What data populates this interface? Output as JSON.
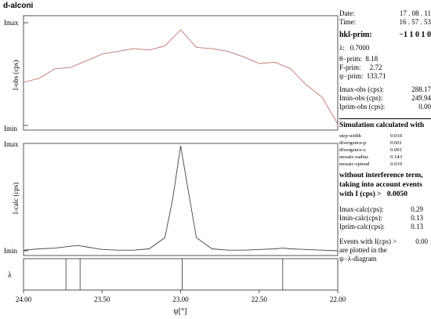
{
  "title": "d-alconi",
  "info": {
    "date_label": "Date:",
    "date_value": "17 . 08 . 11",
    "time_label": "Time:",
    "time_value": "16 . 57 . 53",
    "hkl_label": "hkl-prim:",
    "hkl_value": "−1  1  0  1  0",
    "lambda_label": "λ:",
    "lambda_value": "0.7000",
    "theta_label": "θ−prim:",
    "theta_value": "8.18",
    "f_label": "F-prim:",
    "f_value": "2.72",
    "psi_label": "ψ−prim:",
    "psi_value": "133.71",
    "imax_obs_label": "Imax-obs (cps):",
    "imax_obs_value": "288.17",
    "imin_obs_label": "Imin-obs (cps):",
    "imin_obs_value": "249.94",
    "iprim_obs_label": "Iprim-obs (cps):",
    "iprim_obs_value": "0.00"
  },
  "simulation": {
    "heading": "Simulation calculated with",
    "params": [
      {
        "label": "step-width",
        "value": "0.010"
      },
      {
        "label": "divergence-p",
        "value": "0.001"
      },
      {
        "label": "divergence-s",
        "value": "0.001"
      },
      {
        "label": "mosaic-radius",
        "value": "0.143"
      },
      {
        "label": "mosaic-spread",
        "value": "0.010"
      }
    ],
    "note_line1": "without interference term,",
    "note_line2": "taking into account events",
    "note_line3": "with I (cps) >",
    "threshold": "0.0050",
    "imax_calc_label": "Imax-calc(cps):",
    "imax_calc_value": "0.29",
    "imin_calc_label": "Imin-calc(cps):",
    "imin_calc_value": "0.13",
    "iprim_calc_label": "Iprim-calc(cps):",
    "iprim_calc_value": "0.13",
    "events_line1": "Events with I(cps) >",
    "events_value": "0.00",
    "events_line2": "are plotted in the",
    "events_line3": "ψ−λ-diagram"
  },
  "chart_data": {
    "type": "line",
    "xlabel": "ψ[°]",
    "xlim": [
      24.0,
      22.0
    ],
    "x_ticks": [
      "24.00",
      "23.50",
      "23.00",
      "22.50",
      "22.00"
    ],
    "tick_values": [
      24.0,
      23.5,
      23.0,
      22.5,
      22.0
    ],
    "colors": {
      "observed": "#c0746e",
      "calculated": "#444444"
    },
    "observed": {
      "ylabel": "I-obs (cps)",
      "y_top_label": "Imax",
      "y_bottom_label": "Imin",
      "ylim": [
        249.94,
        288.17
      ],
      "x": [
        24.0,
        23.9,
        23.8,
        23.7,
        23.6,
        23.5,
        23.4,
        23.3,
        23.2,
        23.1,
        23.0,
        22.9,
        22.8,
        22.7,
        22.6,
        22.5,
        22.4,
        22.3,
        22.2,
        22.1,
        22.0
      ],
      "y": [
        266.0,
        267.5,
        271.0,
        271.5,
        274.0,
        276.5,
        277.5,
        278.5,
        278.0,
        279.5,
        285.5,
        279.0,
        278.5,
        277.5,
        275.5,
        273.0,
        273.5,
        271.0,
        265.0,
        260.5,
        250.5
      ]
    },
    "calculated": {
      "ylabel": "I-calc (cps)",
      "y_top_label": "Imax",
      "y_bottom_label": "Imin",
      "ylim": [
        0.13,
        0.29
      ],
      "x": [
        24.0,
        23.9,
        23.8,
        23.7,
        23.65,
        23.6,
        23.5,
        23.4,
        23.3,
        23.2,
        23.1,
        23.05,
        23.0,
        22.95,
        22.9,
        22.8,
        22.7,
        22.6,
        22.5,
        22.4,
        22.35,
        22.3,
        22.2,
        22.1,
        22.0
      ],
      "y": [
        0.131,
        0.133,
        0.134,
        0.137,
        0.138,
        0.136,
        0.132,
        0.131,
        0.131,
        0.133,
        0.15,
        0.21,
        0.29,
        0.22,
        0.15,
        0.133,
        0.131,
        0.131,
        0.132,
        0.133,
        0.134,
        0.133,
        0.132,
        0.131,
        0.13
      ]
    },
    "events": {
      "ylabel": "λ",
      "x": [
        23.73,
        23.64,
        22.99,
        22.35
      ]
    }
  }
}
